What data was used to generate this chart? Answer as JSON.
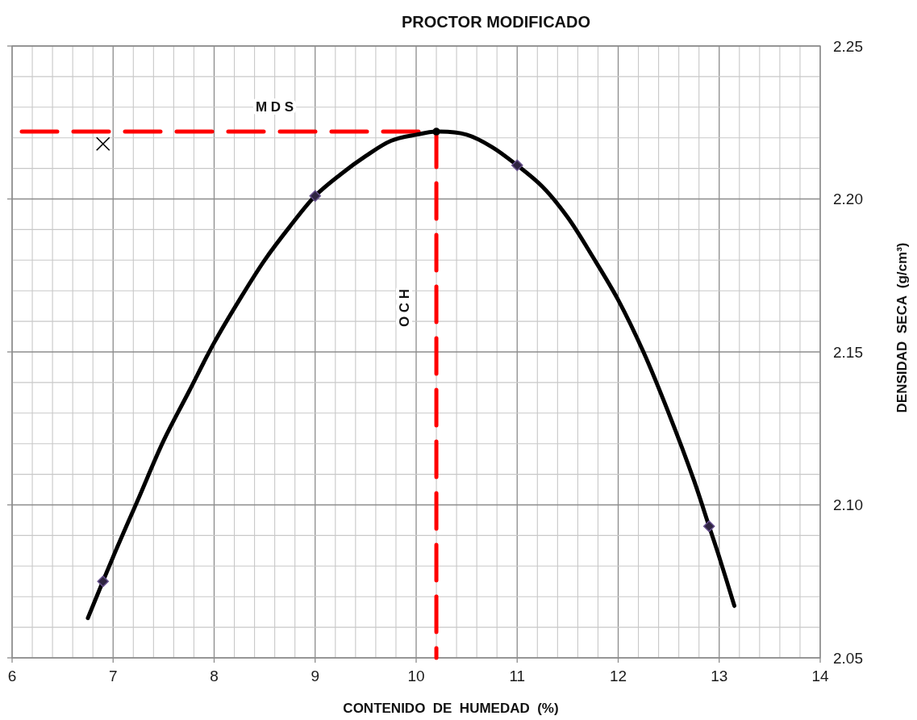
{
  "chart_data": {
    "type": "line",
    "title": "PROCTOR MODIFICADO",
    "xlabel": "CONTENIDO  DE  HUMEDAD  (%)",
    "ylabel": "DENSIDAD  SECA  (g/cm³)",
    "xlim": [
      6,
      14
    ],
    "ylim": [
      2.05,
      2.25
    ],
    "xticks": [
      6,
      {
        "value": 6.2,
        "label": null
      },
      {
        "value": 6.4,
        "label": null
      },
      {
        "value": 6.6,
        "label": null
      },
      {
        "value": 6.8,
        "label": null
      },
      7,
      {
        "value": 7.2,
        "label": null
      },
      {
        "value": 7.4,
        "label": null
      },
      {
        "value": 7.6,
        "label": null
      },
      {
        "value": 7.8,
        "label": null
      },
      8,
      {
        "value": 8.2,
        "label": null
      },
      {
        "value": 8.4,
        "label": null
      },
      {
        "value": 8.6,
        "label": null
      },
      {
        "value": 8.8,
        "label": null
      },
      9,
      {
        "value": 9.2,
        "label": null
      },
      {
        "value": 9.4,
        "label": null
      },
      {
        "value": 9.6,
        "label": null
      },
      {
        "value": 9.8,
        "label": null
      },
      10,
      {
        "value": 10.2,
        "label": null
      },
      {
        "value": 10.4,
        "label": null
      },
      {
        "value": 10.6,
        "label": null
      },
      {
        "value": 10.8,
        "label": null
      },
      11,
      {
        "value": 11.2,
        "label": null
      },
      {
        "value": 11.4,
        "label": null
      },
      {
        "value": 11.6,
        "label": null
      },
      {
        "value": 11.8,
        "label": null
      },
      12,
      {
        "value": 12.2,
        "label": null
      },
      {
        "value": 12.4,
        "label": null
      },
      {
        "value": 12.6,
        "label": null
      },
      {
        "value": 12.8,
        "label": null
      },
      13,
      {
        "value": 13.2,
        "label": null
      },
      {
        "value": 13.4,
        "label": null
      },
      {
        "value": 13.6,
        "label": null
      },
      {
        "value": 13.8,
        "label": null
      },
      14
    ],
    "yticks": [
      2.05,
      {
        "value": 2.06,
        "label": null
      },
      {
        "value": 2.07,
        "label": null
      },
      {
        "value": 2.08,
        "label": null
      },
      {
        "value": 2.09,
        "label": null
      },
      {
        "value": 2.1,
        "label": "2.10"
      },
      {
        "value": 2.11,
        "label": null
      },
      {
        "value": 2.12,
        "label": null
      },
      {
        "value": 2.13,
        "label": null
      },
      {
        "value": 2.14,
        "label": null
      },
      2.15,
      {
        "value": 2.16,
        "label": null
      },
      {
        "value": 2.17,
        "label": null
      },
      {
        "value": 2.18,
        "label": null
      },
      {
        "value": 2.19,
        "label": null
      },
      {
        "value": 2.2,
        "label": "2.20"
      },
      {
        "value": 2.21,
        "label": null
      },
      {
        "value": 2.22,
        "label": null
      },
      {
        "value": 2.23,
        "label": null
      },
      {
        "value": 2.24,
        "label": null
      },
      2.25
    ],
    "grid": true,
    "series": [
      {
        "color": "#000000",
        "marker": "none",
        "x": [
          6.75,
          7,
          7.25,
          7.5,
          7.75,
          8,
          8.25,
          8.5,
          8.75,
          9,
          9.25,
          9.5,
          9.75,
          10,
          10.2,
          10.5,
          10.75,
          11,
          11.25,
          11.5,
          11.75,
          12,
          12.25,
          12.5,
          12.75,
          12.9,
          13,
          13.15
        ],
        "values": [
          2.063,
          2.083,
          2.102,
          2.121,
          2.137,
          2.153,
          2.167,
          2.18,
          2.191,
          2.201,
          2.208,
          2.214,
          2.219,
          2.221,
          2.222,
          2.221,
          2.217,
          2.211,
          2.204,
          2.194,
          2.181,
          2.167,
          2.15,
          2.13,
          2.108,
          2.093,
          2.083,
          2.067
        ]
      },
      {
        "type": "scatter",
        "color": "#2e2440",
        "marker": "diamond",
        "x": [
          6.9,
          9,
          11,
          12.9
        ],
        "values": [
          2.075,
          2.201,
          2.211,
          2.093
        ]
      },
      {
        "type": "scatter",
        "color": "#000000",
        "marker": "circle",
        "x": [
          10.2
        ],
        "values": [
          2.222
        ]
      },
      {
        "type": "scatter",
        "color": "#000000",
        "marker": "cross",
        "x": [
          6.9
        ],
        "values": [
          2.218
        ]
      }
    ],
    "ref_lines": [
      {
        "axis": "y",
        "value": 2.222,
        "label": "M D S",
        "color": "#ff0000",
        "line_style": "dashed"
      },
      {
        "axis": "x",
        "value": 10.2,
        "label": "O C H",
        "color": "#ff0000",
        "line_style": "dashed"
      }
    ]
  }
}
